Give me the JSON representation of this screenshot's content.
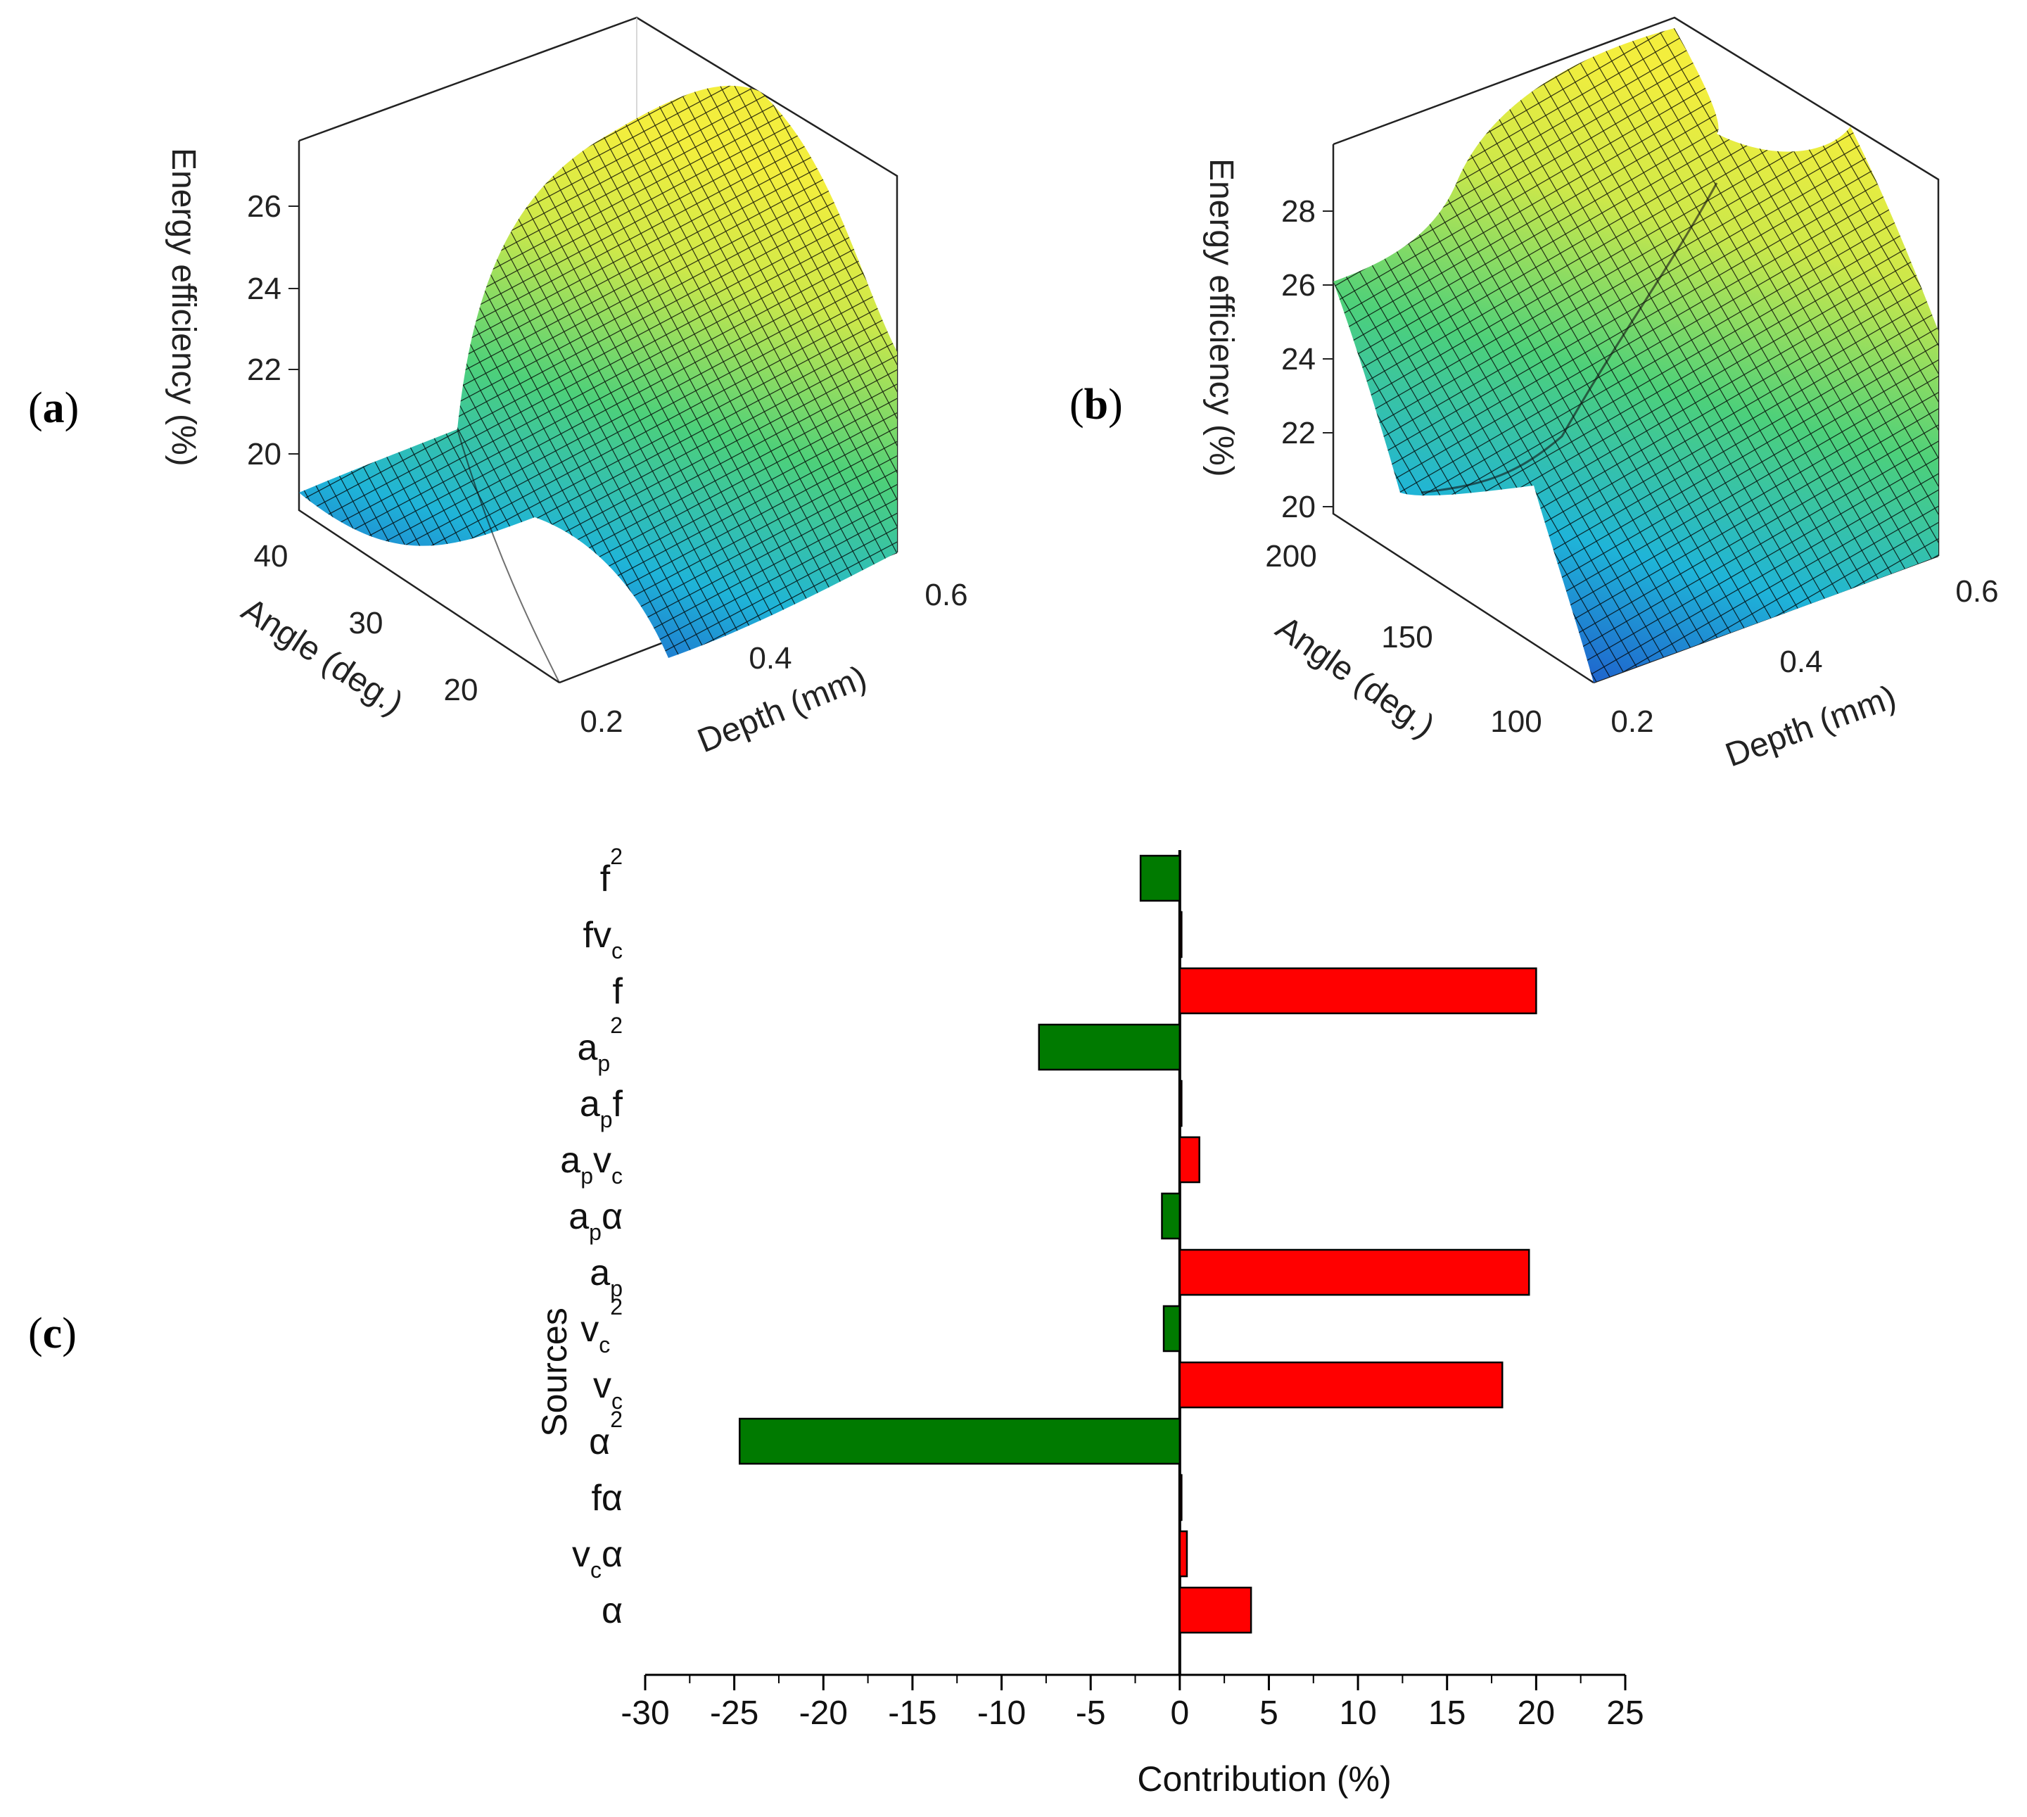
{
  "panels": {
    "a": {
      "label": "a"
    },
    "b": {
      "label": "b"
    },
    "c": {
      "label": "c"
    }
  },
  "chart_data": [
    {
      "id": "a",
      "type": "surface",
      "zlabel": "Energy efficiency (%)",
      "xlabel": "Depth (mm)",
      "ylabel": "Angle (deg.)",
      "z_ticks": [
        "20",
        "22",
        "24",
        "26"
      ],
      "x_ticks": [
        "0.2",
        "0.4",
        "0.6"
      ],
      "y_ticks": [
        "20",
        "30",
        "40"
      ],
      "xlim": [
        0.2,
        0.6
      ],
      "ylim": [
        15,
        40
      ],
      "zlim": [
        19,
        28
      ],
      "colors": [
        "#1f3cc8",
        "#1fb4d8",
        "#4dd07a",
        "#cde84a",
        "#f3ee3d"
      ]
    },
    {
      "id": "b",
      "type": "surface",
      "zlabel": "Energy efficiency (%)",
      "xlabel": "Depth (mm)",
      "ylabel": "Angle (deg.)",
      "z_ticks": [
        "20",
        "22",
        "24",
        "26",
        "28"
      ],
      "x_ticks": [
        "0.2",
        "0.4",
        "0.6"
      ],
      "y_ticks": [
        "100",
        "150",
        "200"
      ],
      "xlim": [
        0.2,
        0.6
      ],
      "ylim": [
        100,
        200
      ],
      "zlim": [
        20,
        30
      ],
      "colors": [
        "#1f3cc8",
        "#1fb4d8",
        "#4dd07a",
        "#cde84a",
        "#f3ee3d"
      ]
    },
    {
      "id": "c",
      "type": "bar",
      "orientation": "horizontal",
      "xlabel": "Contribution (%)",
      "ylabel": "Sources",
      "xlim": [
        -30,
        25
      ],
      "x_ticks": [
        -30,
        -25,
        -20,
        -15,
        -10,
        -5,
        0,
        5,
        10,
        15,
        20,
        25
      ],
      "positive_color": "#ff0000",
      "negative_color": "#007a00",
      "categories": [
        {
          "base": "f",
          "sub": "",
          "sup": "2",
          "value": -2.2
        },
        {
          "base": "fv",
          "sub": "c",
          "sup": "",
          "value": 0.1
        },
        {
          "base": "f",
          "sub": "",
          "sup": "",
          "value": 20.0
        },
        {
          "base": "a",
          "sub": "p",
          "sup": "2",
          "value": -7.9
        },
        {
          "base": "a",
          "sub": "p",
          "sup": "",
          "tail": "f",
          "value": 0.1
        },
        {
          "base": "a",
          "sub": "p",
          "sup": "",
          "tail": "v",
          "tail_sub": "c",
          "value": 1.1
        },
        {
          "base": "a",
          "sub": "p",
          "sup": "",
          "tail": "α",
          "value": -1.0
        },
        {
          "base": "a",
          "sub": "p",
          "sup": "",
          "value": 19.6
        },
        {
          "base": "v",
          "sub": "c",
          "sup": "2",
          "value": -0.9
        },
        {
          "base": "v",
          "sub": "c",
          "sup": "",
          "value": 18.1
        },
        {
          "base": "α",
          "sub": "",
          "sup": "2",
          "value": -24.7
        },
        {
          "base": "fα",
          "sub": "",
          "sup": "",
          "value": 0.1
        },
        {
          "base": "v",
          "sub": "c",
          "sup": "",
          "tail": "α",
          "value": 0.4
        },
        {
          "base": "α",
          "sub": "",
          "sup": "",
          "value": 4.0
        }
      ]
    }
  ]
}
